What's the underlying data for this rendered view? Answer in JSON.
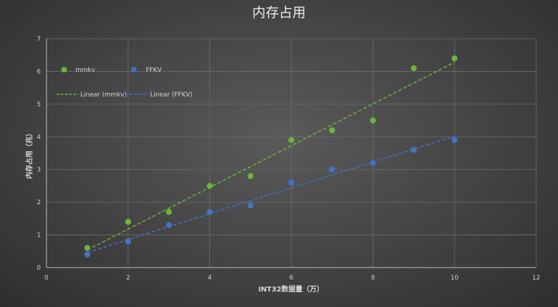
{
  "chart_data": {
    "type": "scatter",
    "title": "内存占用",
    "xlabel": "INT32数据量（万）",
    "ylabel": "内存占用（兆）",
    "xlim": [
      0,
      12
    ],
    "ylim": [
      0,
      7
    ],
    "xticks": [
      0,
      2,
      4,
      6,
      8,
      10,
      12
    ],
    "yticks": [
      0,
      1,
      2,
      3,
      4,
      5,
      6,
      7
    ],
    "grid": true,
    "legend_position": "top-left",
    "series": [
      {
        "name": "mmkv",
        "color": "#6db33f",
        "points": [
          [
            1,
            0.6
          ],
          [
            2,
            1.4
          ],
          [
            3,
            1.7
          ],
          [
            4,
            2.5
          ],
          [
            5,
            2.8
          ],
          [
            6,
            3.9
          ],
          [
            7,
            4.2
          ],
          [
            8,
            4.5
          ],
          [
            9,
            6.1
          ],
          [
            10,
            6.4
          ]
        ],
        "trendline": {
          "name": "Linear (mmkv)",
          "type": "linear"
        }
      },
      {
        "name": "FFKV",
        "color": "#4472c4",
        "points": [
          [
            1,
            0.4
          ],
          [
            2,
            0.8
          ],
          [
            3,
            1.3
          ],
          [
            4,
            1.7
          ],
          [
            5,
            1.9
          ],
          [
            6,
            2.6
          ],
          [
            7,
            3.0
          ],
          [
            8,
            3.2
          ],
          [
            9,
            3.6
          ],
          [
            10,
            3.9
          ]
        ],
        "trendline": {
          "name": "Linear (FFKV)",
          "type": "linear"
        }
      }
    ]
  }
}
